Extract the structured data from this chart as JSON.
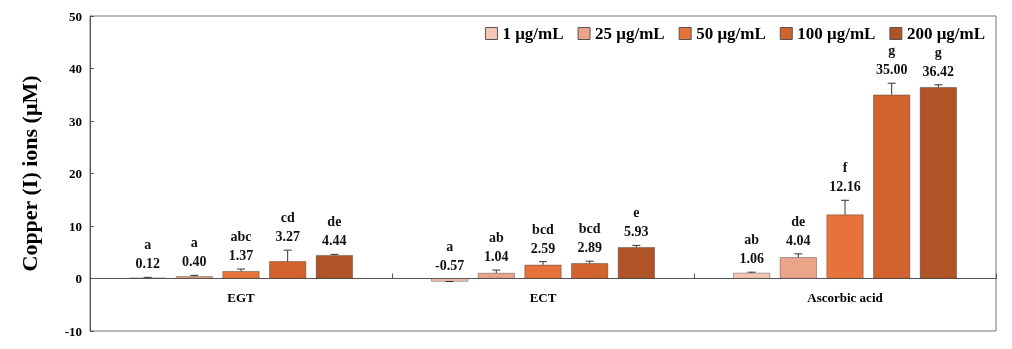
{
  "chart_data": {
    "type": "bar",
    "ylabel": "Copper (I) ions (μM)",
    "categories": [
      "EGT",
      "ECT",
      "Ascorbic acid"
    ],
    "ylim": [
      -10,
      50
    ],
    "yticks": [
      -10,
      0,
      10,
      20,
      30,
      40,
      50
    ],
    "grid": false,
    "legend": "top right",
    "series": [
      {
        "name": "1 μg/mL",
        "color": "#f5c6b5",
        "values": [
          0.12,
          -0.57,
          1.06
        ],
        "errors": [
          [
            0.12,
            0.22
          ],
          [
            -0.67,
            -0.57
          ],
          [
            1.06,
            1.2
          ]
        ],
        "value_labels": [
          "a\n0.12",
          "a\n-0.57",
          "ab\n1.06"
        ]
      },
      {
        "name": "25 μg/mL",
        "color": "#eba38a",
        "values": [
          0.4,
          1.04,
          4.04
        ],
        "errors": [
          [
            0.4,
            0.6
          ],
          [
            1.04,
            1.6
          ],
          [
            4.04,
            4.7
          ]
        ],
        "value_labels": [
          "a\n0.40",
          "ab\n1.04",
          "de\n4.04"
        ]
      },
      {
        "name": "50 μg/mL",
        "color": "#e8733a",
        "values": [
          1.37,
          2.59,
          12.16
        ],
        "errors": [
          [
            1.37,
            1.8
          ],
          [
            2.59,
            3.2
          ],
          [
            12.16,
            14.9
          ]
        ],
        "value_labels": [
          "abc\n1.37",
          "bcd\n2.59",
          "f\n12.16"
        ]
      },
      {
        "name": "100 μg/mL",
        "color": "#d2622e",
        "values": [
          3.27,
          2.89,
          35.0
        ],
        "errors": [
          [
            3.27,
            5.4
          ],
          [
            2.89,
            3.3
          ],
          [
            35.0,
            37.2
          ]
        ],
        "value_labels": [
          "cd\n3.27",
          "bcd\n2.89",
          "g\n35.00"
        ]
      },
      {
        "name": "200 μg/mL",
        "color": "#b05428",
        "values": [
          4.44,
          5.93,
          36.42
        ],
        "errors": [
          [
            4.44,
            4.6
          ],
          [
            5.93,
            6.3
          ],
          [
            36.42,
            36.9
          ]
        ],
        "value_labels": [
          "de\n4.44",
          "e\n5.93",
          "g\n36.42"
        ]
      }
    ]
  }
}
